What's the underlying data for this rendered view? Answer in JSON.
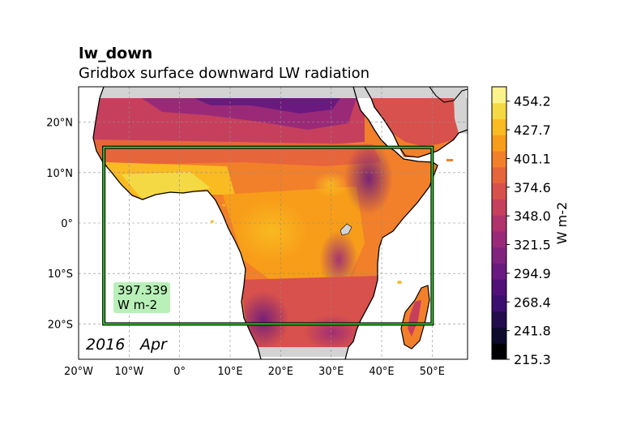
{
  "chart_data": {
    "type": "heatmap",
    "title": "lw_down",
    "subtitle": "Gridbox surface downward LW radiation",
    "variable": "lw_down",
    "units_label": "W m-2",
    "date": {
      "year": "2016",
      "month": "Apr"
    },
    "lon_range": [
      -20,
      57
    ],
    "lat_range": [
      -27,
      27
    ],
    "grid": true,
    "x_ticks": [
      {
        "value": -20,
        "label": "20°W"
      },
      {
        "value": -10,
        "label": "10°W"
      },
      {
        "value": 0,
        "label": "0°"
      },
      {
        "value": 10,
        "label": "10°E"
      },
      {
        "value": 20,
        "label": "20°E"
      },
      {
        "value": 30,
        "label": "30°E"
      },
      {
        "value": 40,
        "label": "40°E"
      },
      {
        "value": 50,
        "label": "50°E"
      }
    ],
    "y_ticks": [
      {
        "value": 20,
        "label": "20°N"
      },
      {
        "value": 10,
        "label": "10°N"
      },
      {
        "value": 0,
        "label": "0°"
      },
      {
        "value": -10,
        "label": "10°S"
      },
      {
        "value": -20,
        "label": "20°S"
      }
    ],
    "colorbar": {
      "min": 215.3,
      "max": 467.5,
      "tick_values": [
        215.3,
        241.8,
        268.4,
        294.9,
        321.5,
        348.0,
        374.6,
        401.1,
        427.7,
        454.2
      ],
      "tick_labels": [
        "215.3",
        "241.8",
        "268.4",
        "294.9",
        "321.5",
        "348.0",
        "374.6",
        "401.1",
        "427.7",
        "454.2"
      ],
      "colors": [
        "#000004",
        "#0d0a2e",
        "#230c4d",
        "#3b0f6f",
        "#520f7a",
        "#6a1a7e",
        "#82227f",
        "#9a2a78",
        "#b1336d",
        "#c6405d",
        "#d8514c",
        "#e7653b",
        "#f2802a",
        "#f89d19",
        "#f9bb21",
        "#f5d944",
        "#fcf28b"
      ]
    },
    "region_box": {
      "lon_min": -15,
      "lon_max": 50,
      "lat_min": -20,
      "lat_max": 15
    },
    "region_mean": {
      "value": "397.339",
      "units": "W m-2"
    }
  }
}
